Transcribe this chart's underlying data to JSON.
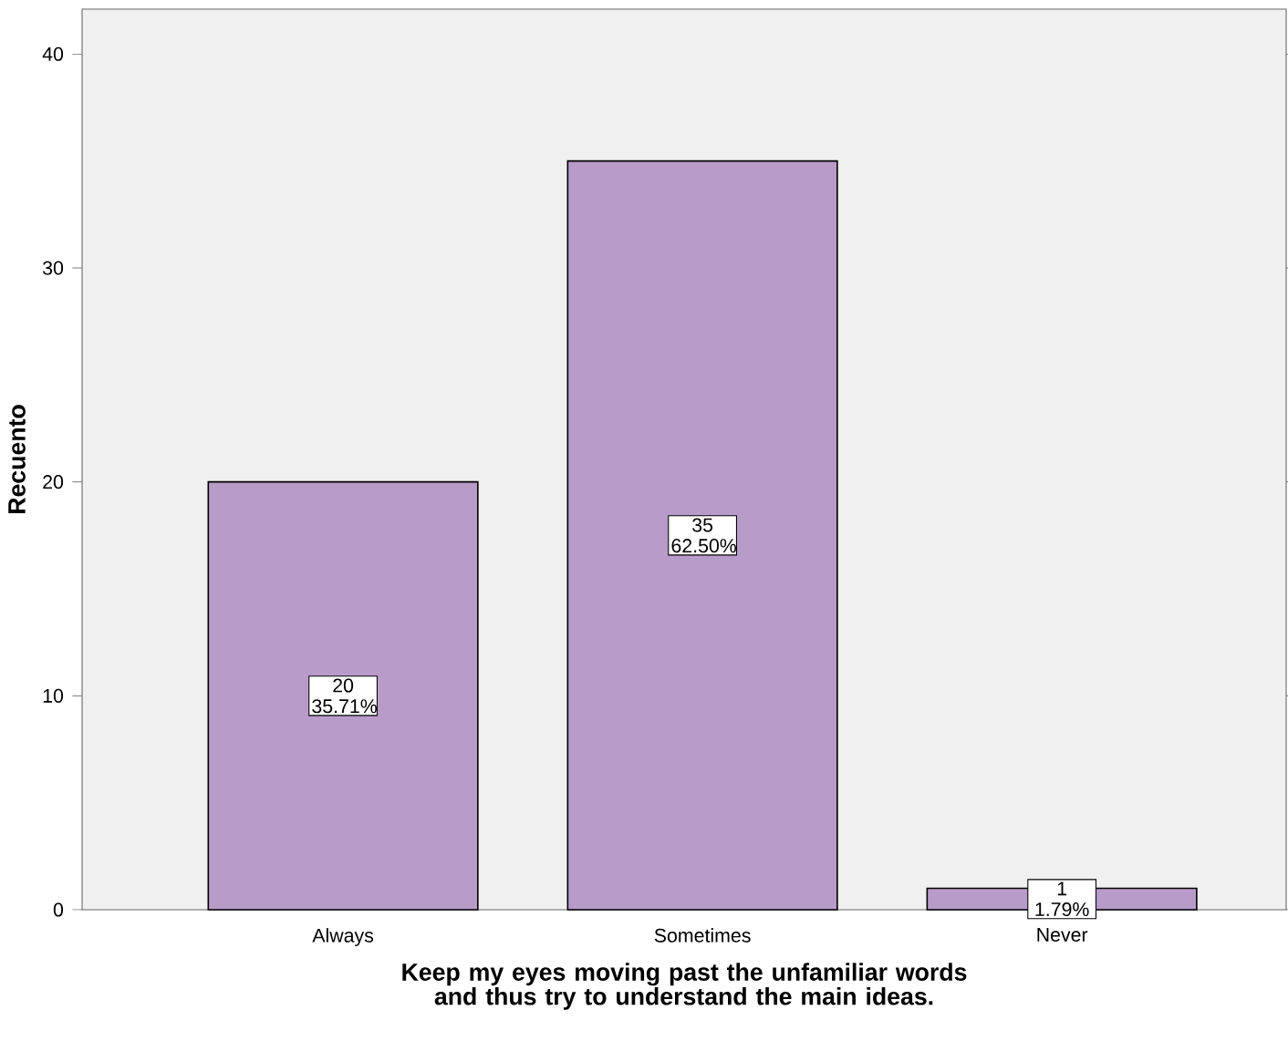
{
  "chart_data": {
    "type": "bar",
    "xlabel": "Keep my eyes moving past the unfamiliar words and thus try to understand the main ideas.",
    "ylabel": "Recuento",
    "categories": [
      "Always",
      "Sometimes",
      "Never"
    ],
    "values": [
      20,
      35,
      1
    ],
    "color": "#b89bc9",
    "value_labels": [
      "20 35.71%",
      "35 62.50%",
      "1 1.79%"
    ],
    "ylim": [
      0,
      42.1
    ],
    "yticks": [
      0,
      10,
      20,
      30,
      40
    ]
  }
}
